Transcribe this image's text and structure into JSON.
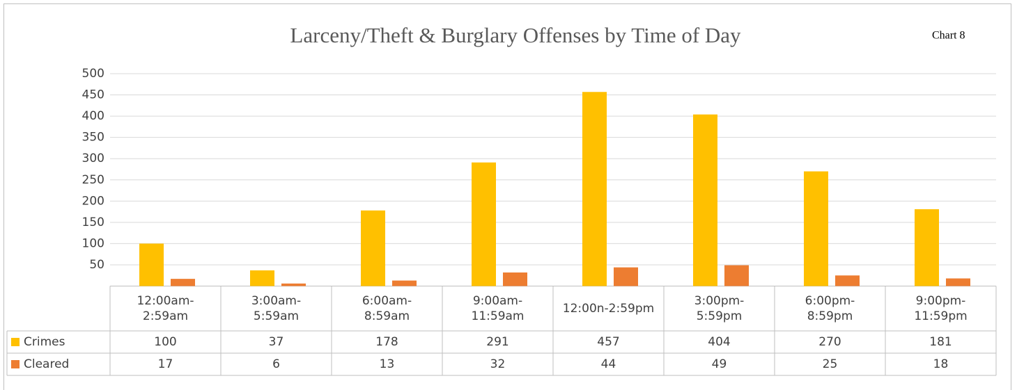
{
  "chart_data": {
    "type": "bar",
    "title": "Larceny/Theft & Burglary Offenses by Time of Day",
    "annotation": "Chart 8",
    "categories": [
      [
        "12:00am-",
        "2:59am"
      ],
      [
        "3:00am-",
        "5:59am"
      ],
      [
        "6:00am-",
        "8:59am"
      ],
      [
        "9:00am-",
        "11:59am"
      ],
      [
        "12:00n-2:59pm"
      ],
      [
        "3:00pm-",
        "5:59pm"
      ],
      [
        "6:00pm-",
        "8:59pm"
      ],
      [
        "9:00pm-",
        "11:59pm"
      ]
    ],
    "series": [
      {
        "name": "Crimes",
        "color": "#FFC000",
        "values": [
          100,
          37,
          178,
          291,
          457,
          404,
          270,
          181
        ]
      },
      {
        "name": "Cleared",
        "color": "#ED7D31",
        "values": [
          17,
          6,
          13,
          32,
          44,
          49,
          25,
          18
        ]
      }
    ],
    "ylim": [
      0,
      500
    ],
    "yticks": [
      50,
      100,
      150,
      200,
      250,
      300,
      350,
      400,
      450,
      500
    ],
    "grid": true
  }
}
